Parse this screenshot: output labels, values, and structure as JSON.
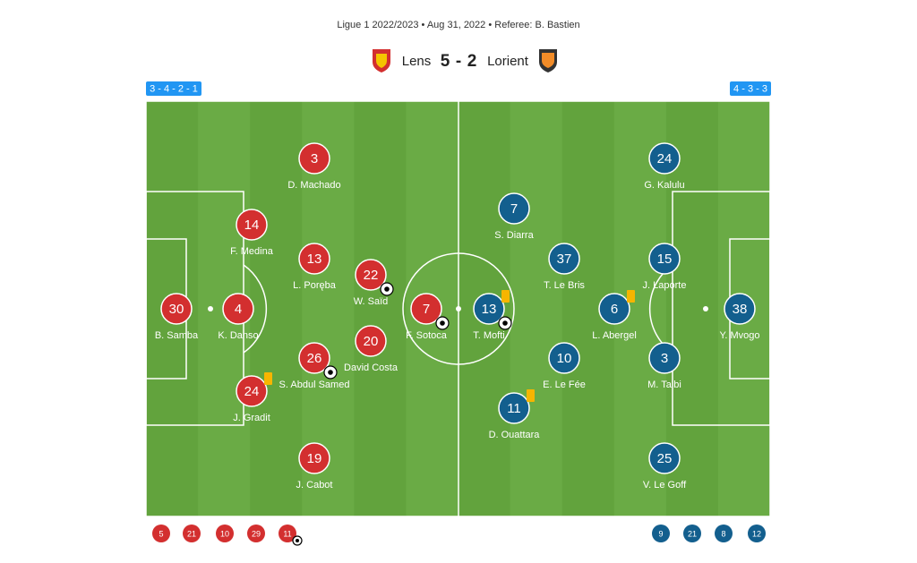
{
  "header": {
    "info": "Ligue 1 2022/2023 • Aug 31, 2022 • Referee: B. Bastien",
    "home_team": "Lens",
    "home_score": 5,
    "separator": "-",
    "away_score": 2,
    "away_team": "Lorient"
  },
  "home": {
    "formation": "3 - 4 - 2 - 1",
    "players": [
      {
        "number": 30,
        "name": "B. Samba"
      },
      {
        "number": 4,
        "name": "K. Danso"
      },
      {
        "number": 14,
        "name": "F. Medina"
      },
      {
        "number": 24,
        "name": "J. Gradit"
      },
      {
        "number": 3,
        "name": "D. Machado"
      },
      {
        "number": 13,
        "name": "L. Poręba"
      },
      {
        "number": 26,
        "name": "S. Abdul Samed"
      },
      {
        "number": 19,
        "name": "J. Cabot"
      },
      {
        "number": 22,
        "name": "W. Saïd"
      },
      {
        "number": 20,
        "name": "David Costa"
      },
      {
        "number": 7,
        "name": "F. Sotoca"
      }
    ],
    "substitutes": [
      5,
      21,
      10,
      29,
      11
    ]
  },
  "away": {
    "formation": "4 - 3 - 3",
    "players": [
      {
        "number": 38,
        "name": "Y. Mvogo"
      },
      {
        "number": 24,
        "name": "G. Kalulu"
      },
      {
        "number": 15,
        "name": "J. Laporte"
      },
      {
        "number": 3,
        "name": "M. Talbi"
      },
      {
        "number": 25,
        "name": "V. Le Goff"
      },
      {
        "number": 6,
        "name": "L. Abergel"
      },
      {
        "number": 37,
        "name": "T. Le Bris"
      },
      {
        "number": 10,
        "name": "E. Le Fée"
      },
      {
        "number": 7,
        "name": "S. Diarra"
      },
      {
        "number": 13,
        "name": "T. Mofti"
      },
      {
        "number": 11,
        "name": "D. Ouattara"
      }
    ],
    "substitutes": [
      9,
      21,
      8,
      12
    ]
  }
}
